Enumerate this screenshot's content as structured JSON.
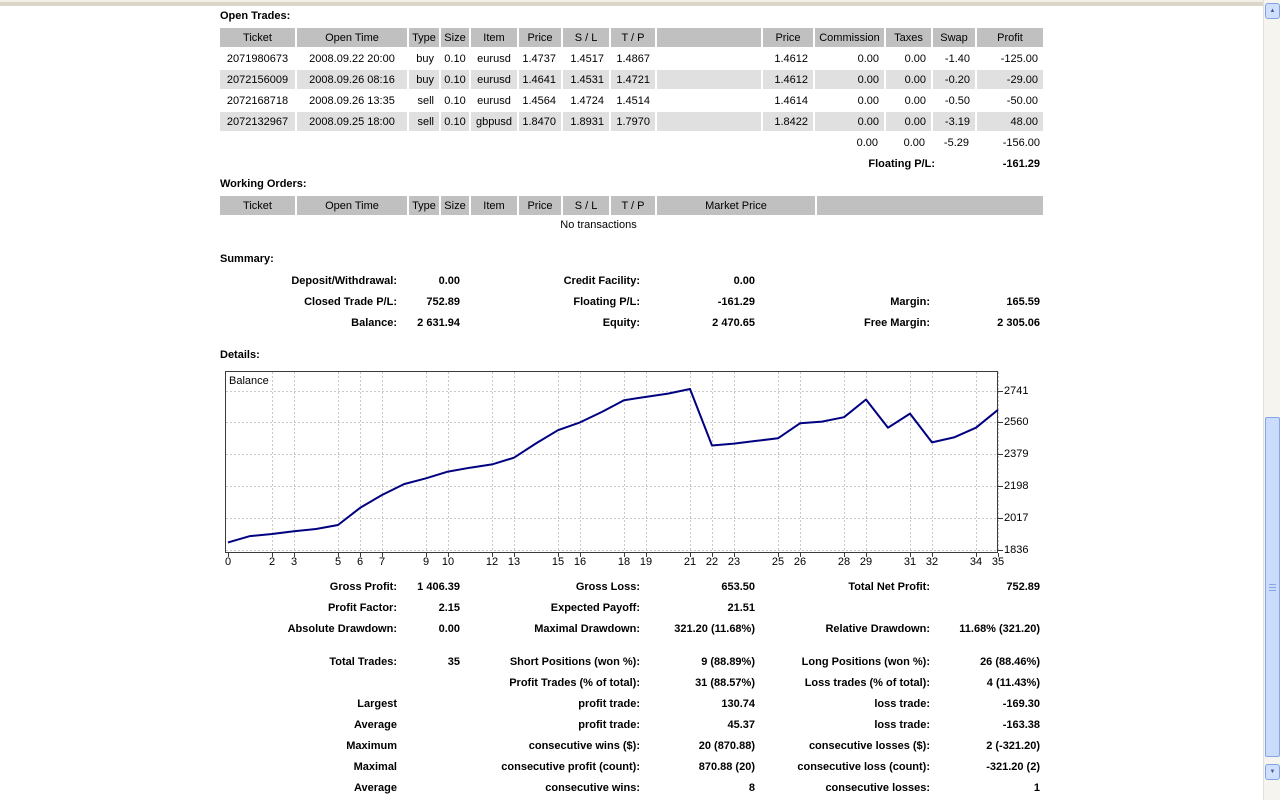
{
  "open_trades": {
    "title": "Open Trades:",
    "headers": [
      "Ticket",
      "Open Time",
      "Type",
      "Size",
      "Item",
      "Price",
      "S / L",
      "T / P",
      "",
      "Price",
      "Commission",
      "Taxes",
      "Swap",
      "Profit"
    ],
    "rows": [
      [
        "2071980673",
        "2008.09.22 20:00",
        "buy",
        "0.10",
        "eurusd",
        "1.4737",
        "1.4517",
        "1.4867",
        "",
        "1.4612",
        "0.00",
        "0.00",
        "-1.40",
        "-125.00"
      ],
      [
        "2072156009",
        "2008.09.26 08:16",
        "buy",
        "0.10",
        "eurusd",
        "1.4641",
        "1.4531",
        "1.4721",
        "",
        "1.4612",
        "0.00",
        "0.00",
        "-0.20",
        "-29.00"
      ],
      [
        "2072168718",
        "2008.09.26 13:35",
        "sell",
        "0.10",
        "eurusd",
        "1.4564",
        "1.4724",
        "1.4514",
        "",
        "1.4614",
        "0.00",
        "0.00",
        "-0.50",
        "-50.00"
      ],
      [
        "2072132967",
        "2008.09.25 18:00",
        "sell",
        "0.10",
        "gbpusd",
        "1.8470",
        "1.8931",
        "1.7970",
        "",
        "1.8422",
        "0.00",
        "0.00",
        "-3.19",
        "48.00"
      ]
    ],
    "totals": {
      "commission": "0.00",
      "taxes": "0.00",
      "swap": "-5.29",
      "profit": "-156.00"
    },
    "floating_pl_label": "Floating P/L:",
    "floating_pl_value": "-161.29"
  },
  "working_orders": {
    "title": "Working Orders:",
    "headers": [
      "Ticket",
      "Open Time",
      "Type",
      "Size",
      "Item",
      "Price",
      "S / L",
      "T / P",
      "Market Price",
      ""
    ],
    "empty_text": "No transactions"
  },
  "summary": {
    "title": "Summary:",
    "rows": [
      [
        "Deposit/Withdrawal:",
        "0.00",
        "Credit Facility:",
        "0.00",
        "",
        ""
      ],
      [
        "Closed Trade P/L:",
        "752.89",
        "Floating P/L:",
        "-161.29",
        "Margin:",
        "165.59"
      ],
      [
        "Balance:",
        "2 631.94",
        "Equity:",
        "2 470.65",
        "Free Margin:",
        "2 305.06"
      ]
    ]
  },
  "details": {
    "title": "Details:"
  },
  "chart_data": {
    "type": "line",
    "title": "Balance",
    "legend_position": "top-left",
    "grid": true,
    "line_color": "#000080",
    "x": [
      0,
      1,
      2,
      3,
      4,
      5,
      6,
      7,
      8,
      9,
      10,
      11,
      12,
      13,
      14,
      15,
      16,
      17,
      18,
      19,
      20,
      21,
      22,
      23,
      24,
      25,
      26,
      27,
      28,
      29,
      30,
      31,
      32,
      33,
      34,
      35
    ],
    "values": [
      1879,
      1915,
      1927,
      1943,
      1955,
      1978,
      2075,
      2148,
      2210,
      2243,
      2281,
      2303,
      2322,
      2360,
      2441,
      2516,
      2560,
      2620,
      2686,
      2705,
      2724,
      2750,
      2429,
      2440,
      2455,
      2470,
      2555,
      2565,
      2590,
      2690,
      2530,
      2610,
      2447,
      2475,
      2530,
      2632
    ],
    "x_tick_labels": [
      0,
      2,
      3,
      5,
      6,
      7,
      9,
      10,
      12,
      13,
      15,
      16,
      18,
      19,
      21,
      22,
      23,
      25,
      26,
      28,
      29,
      31,
      32,
      34,
      35
    ],
    "y_tick_labels": [
      2741,
      2560,
      2379,
      2198,
      2017,
      1836
    ],
    "xlim": [
      0,
      35
    ],
    "ylim": [
      1819,
      2852
    ]
  },
  "stats1": [
    [
      "Gross Profit:",
      "1 406.39",
      "Gross Loss:",
      "653.50",
      "Total Net Profit:",
      "752.89"
    ],
    [
      "Profit Factor:",
      "2.15",
      "Expected Payoff:",
      "21.51",
      "",
      ""
    ],
    [
      "Absolute Drawdown:",
      "0.00",
      "Maximal Drawdown:",
      "321.20 (11.68%)",
      "Relative Drawdown:",
      "11.68% (321.20)"
    ]
  ],
  "stats2": [
    [
      "Total Trades:",
      "35",
      "Short Positions (won %):",
      "9 (88.89%)",
      "Long Positions (won %):",
      "26 (88.46%)"
    ],
    [
      "",
      "",
      "Profit Trades (% of total):",
      "31 (88.57%)",
      "Loss trades (% of total):",
      "4 (11.43%)"
    ],
    [
      "Largest",
      "",
      "profit trade:",
      "130.74",
      "loss trade:",
      "-169.30"
    ],
    [
      "Average",
      "",
      "profit trade:",
      "45.37",
      "loss trade:",
      "-163.38"
    ],
    [
      "Maximum",
      "",
      "consecutive wins ($):",
      "20 (870.88)",
      "consecutive losses ($):",
      "2 (-321.20)"
    ],
    [
      "Maximal",
      "",
      "consecutive profit (count):",
      "870.88 (20)",
      "consecutive loss (count):",
      "-321.20 (2)"
    ],
    [
      "Average",
      "",
      "consecutive wins:",
      "8",
      "consecutive losses:",
      "1"
    ]
  ],
  "scrollbar": {
    "up_icon": "▲",
    "down_icon": "▼"
  }
}
